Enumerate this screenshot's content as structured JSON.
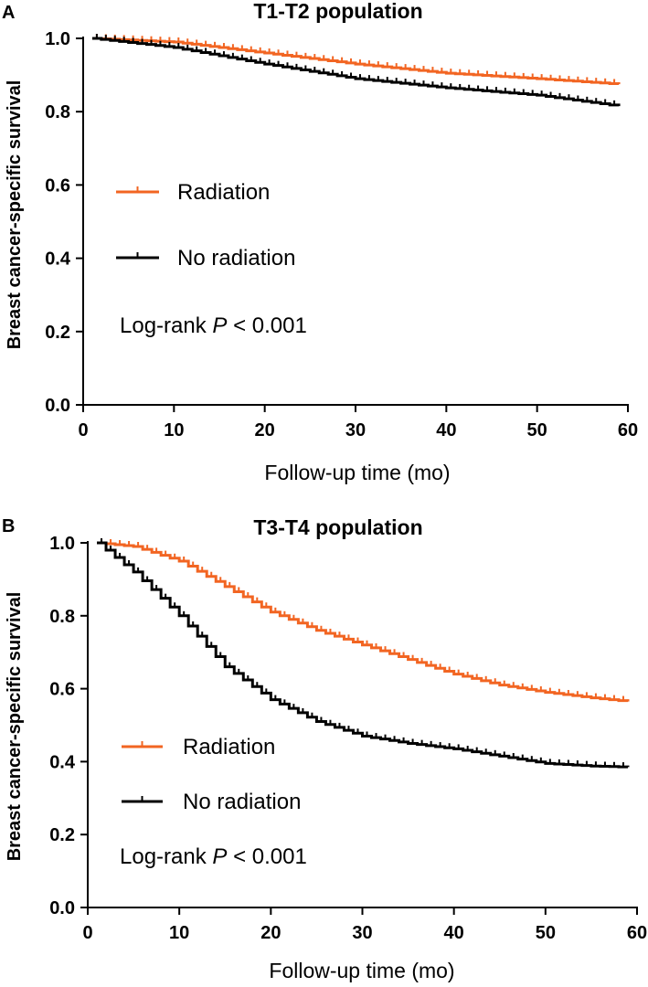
{
  "chart_data": [
    {
      "type": "line",
      "panel_label": "A",
      "title": "T1-T2 population",
      "xlabel": "Follow-up time (mo)",
      "ylabel": "Breast cancer-specific survival",
      "xlim": [
        0,
        60
      ],
      "ylim": [
        0,
        1.0
      ],
      "xticks": [
        0,
        10,
        20,
        30,
        40,
        50,
        60
      ],
      "yticks": [
        "0.0",
        "0.2",
        "0.4",
        "0.6",
        "0.8",
        "1.0"
      ],
      "annotation": {
        "prefix": "Log-rank ",
        "p": "P",
        "suffix": " < 0.001"
      },
      "series": [
        {
          "name": "Radiation",
          "color": "#f26522",
          "x": [
            1,
            10,
            20,
            30,
            40,
            50,
            59
          ],
          "y": [
            1.0,
            0.99,
            0.96,
            0.93,
            0.905,
            0.89,
            0.875
          ]
        },
        {
          "name": "No radiation",
          "color": "#000000",
          "x": [
            1,
            10,
            20,
            30,
            40,
            50,
            59
          ],
          "y": [
            1.0,
            0.975,
            0.93,
            0.89,
            0.865,
            0.845,
            0.815
          ]
        }
      ]
    },
    {
      "type": "line",
      "panel_label": "B",
      "title": "T3-T4 population",
      "xlabel": "Follow-up time (mo)",
      "ylabel": "Breast cancer-specific survival",
      "xlim": [
        0,
        60
      ],
      "ylim": [
        0,
        1.0
      ],
      "xticks": [
        0,
        10,
        20,
        30,
        40,
        50,
        60
      ],
      "yticks": [
        "0.0",
        "0.2",
        "0.4",
        "0.6",
        "0.8",
        "1.0"
      ],
      "annotation": {
        "prefix": "Log-rank ",
        "p": "P",
        "suffix": " < 0.001"
      },
      "series": [
        {
          "name": "Radiation",
          "color": "#f26522",
          "x": [
            1,
            5,
            10,
            15,
            20,
            25,
            30,
            35,
            40,
            45,
            50,
            55,
            59
          ],
          "y": [
            1.0,
            0.99,
            0.95,
            0.88,
            0.81,
            0.76,
            0.72,
            0.68,
            0.64,
            0.61,
            0.59,
            0.575,
            0.565
          ]
        },
        {
          "name": "No radiation",
          "color": "#000000",
          "x": [
            1,
            5,
            10,
            15,
            20,
            25,
            30,
            35,
            40,
            45,
            50,
            55,
            59
          ],
          "y": [
            1.0,
            0.92,
            0.8,
            0.66,
            0.57,
            0.51,
            0.47,
            0.45,
            0.435,
            0.415,
            0.395,
            0.388,
            0.385
          ]
        }
      ]
    }
  ]
}
